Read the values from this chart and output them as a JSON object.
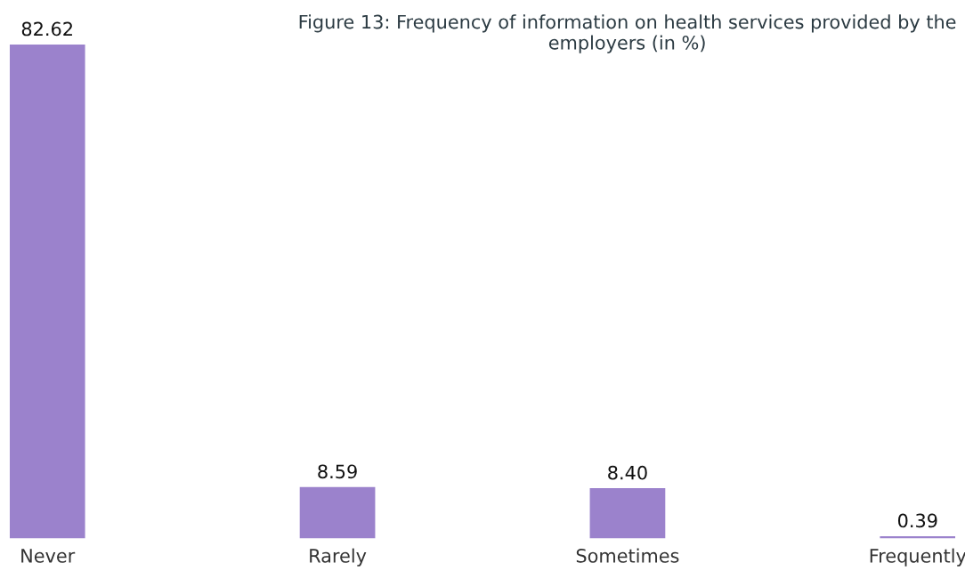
{
  "chart_data": {
    "type": "bar",
    "title": "Figure 13: Frequency of information on health services provided by the employers (in %)",
    "categories": [
      "Never",
      "Rarely",
      "Sometimes",
      "Frequently"
    ],
    "values": [
      82.62,
      8.59,
      8.4,
      0.39
    ],
    "value_labels": [
      "82.62",
      "8.59",
      "8.40",
      "0.39"
    ],
    "color": "#9b82cc",
    "grid": false,
    "legend": false
  }
}
